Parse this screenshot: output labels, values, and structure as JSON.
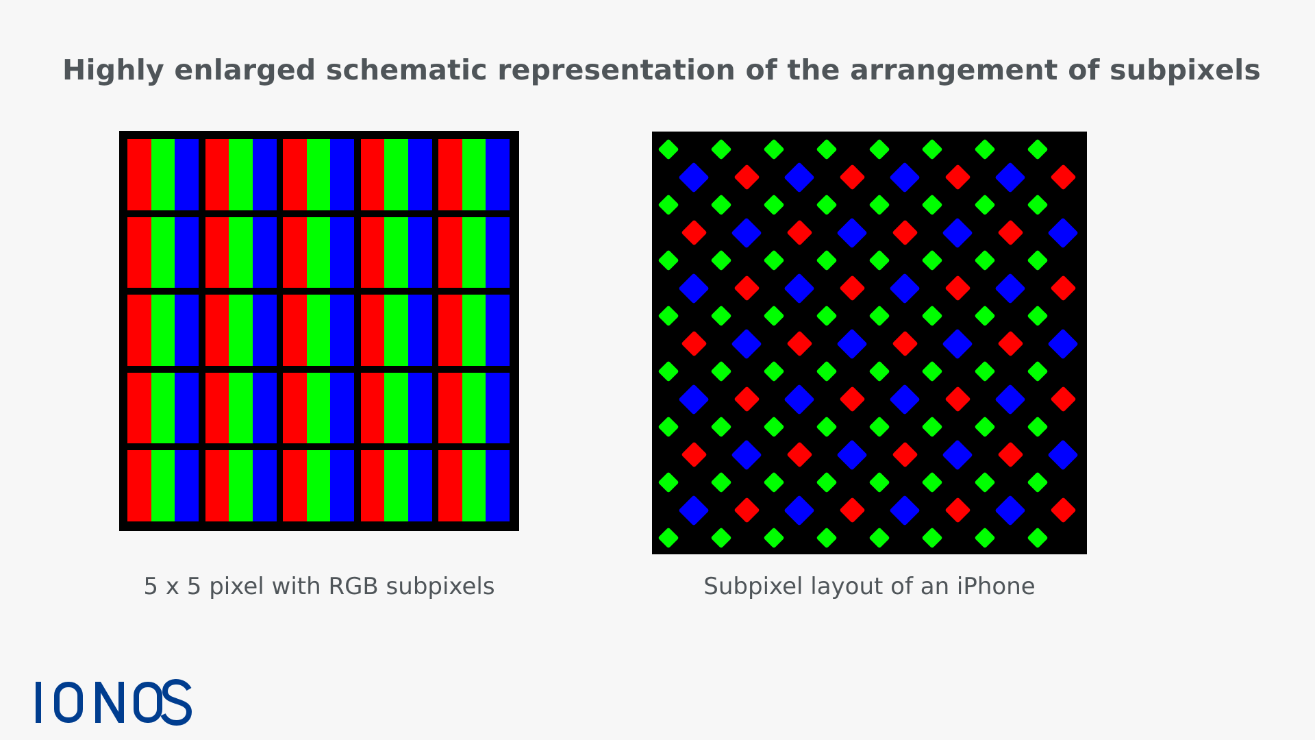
{
  "title": "Highly enlarged schematic representation of the arrangement of subpixels",
  "left_figure": {
    "caption": "5 x 5 pixel with RGB subpixels",
    "grid_rows": 5,
    "grid_cols": 5,
    "subpixel_order": [
      "red",
      "green",
      "blue"
    ]
  },
  "right_figure": {
    "caption": "Subpixel layout of an iPhone",
    "pattern_rows": [
      [
        "green",
        "green",
        "green",
        "green",
        "green",
        "green",
        "green",
        "green"
      ],
      [
        "blue",
        "red",
        "blue",
        "red",
        "blue",
        "red",
        "blue",
        "red"
      ],
      [
        "green",
        "green",
        "green",
        "green",
        "green",
        "green",
        "green",
        "green"
      ],
      [
        "red",
        "blue",
        "red",
        "blue",
        "red",
        "blue",
        "red",
        "blue"
      ],
      [
        "green",
        "green",
        "green",
        "green",
        "green",
        "green",
        "green",
        "green"
      ],
      [
        "blue",
        "red",
        "blue",
        "red",
        "blue",
        "red",
        "blue",
        "red"
      ],
      [
        "green",
        "green",
        "green",
        "green",
        "green",
        "green",
        "green",
        "green"
      ],
      [
        "red",
        "blue",
        "red",
        "blue",
        "red",
        "blue",
        "red",
        "blue"
      ],
      [
        "green",
        "green",
        "green",
        "green",
        "green",
        "green",
        "green",
        "green"
      ],
      [
        "blue",
        "red",
        "blue",
        "red",
        "blue",
        "red",
        "blue",
        "red"
      ],
      [
        "green",
        "green",
        "green",
        "green",
        "green",
        "green",
        "green",
        "green"
      ],
      [
        "red",
        "blue",
        "red",
        "blue",
        "red",
        "blue",
        "red",
        "blue"
      ],
      [
        "green",
        "green",
        "green",
        "green",
        "green",
        "green",
        "green",
        "green"
      ],
      [
        "blue",
        "red",
        "blue",
        "red",
        "blue",
        "red",
        "blue",
        "red"
      ],
      [
        "green",
        "green",
        "green",
        "green",
        "green",
        "green",
        "green",
        "green"
      ]
    ]
  },
  "logo": {
    "text": "IONOS",
    "color": "#003d8f"
  },
  "colors": {
    "red": "#ff0000",
    "green": "#00ff00",
    "blue": "#0000ff",
    "background": "#f7f7f7",
    "panel": "#000000",
    "text": "#4f5559"
  }
}
